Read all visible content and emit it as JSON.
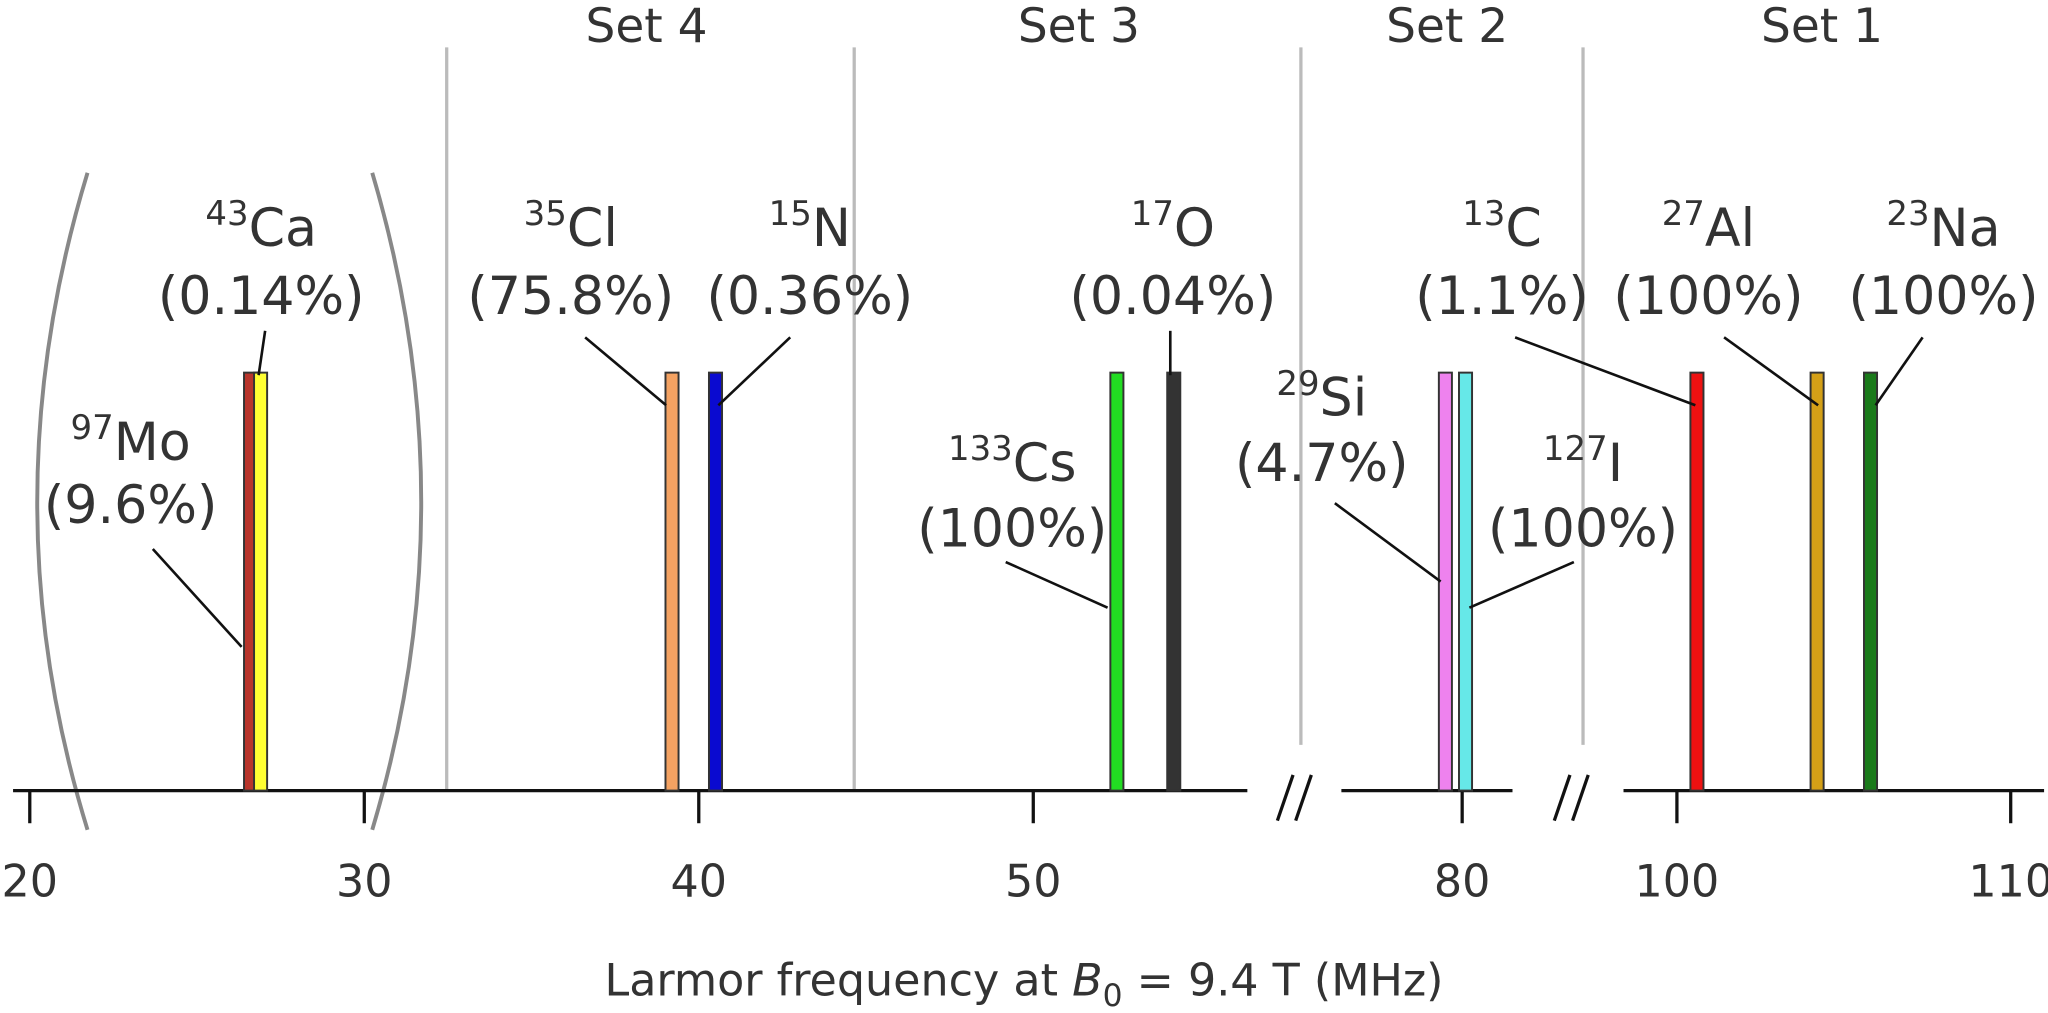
{
  "chart_data": {
    "type": "stick",
    "sets": [
      "Set 4",
      "Set 3",
      "Set 2",
      "Set 1"
    ],
    "xlabel_pre": "Larmor frequency at ",
    "xlabel_symbol": "B",
    "xlabel_subscript": "0",
    "xlabel_post": " = 9.4 T (MHz)",
    "axis_segments": [
      {
        "xlim": [
          19.5,
          56.4
        ],
        "xticks": [
          20,
          30,
          40,
          50
        ]
      },
      {
        "xlim": [
          76.4,
          81.5
        ],
        "xticks": [
          80
        ]
      },
      {
        "xlim": [
          98.4,
          111.0
        ],
        "xticks": [
          100,
          110
        ]
      }
    ],
    "nuclei": [
      {
        "mass": "97",
        "element": "Mo",
        "abundance": "(9.6%)",
        "color": "#b8352b",
        "value": 26.6
      },
      {
        "mass": "43",
        "element": "Ca",
        "abundance": "(0.14%)",
        "color": "#ffff33",
        "value": 26.9
      },
      {
        "mass": "35",
        "element": "Cl",
        "abundance": "(75.8%)",
        "color": "#f4a262",
        "value": 39.2
      },
      {
        "mass": "15",
        "element": "N",
        "abundance": "(0.36%)",
        "color": "#0a0ad0",
        "value": 40.5
      },
      {
        "mass": "133",
        "element": "Cs",
        "abundance": "(100%)",
        "color": "#22dd22",
        "value": 52.5
      },
      {
        "mass": "17",
        "element": "O",
        "abundance": "(0.04%)",
        "color": "#333333",
        "value": 54.2
      },
      {
        "mass": "29",
        "element": "Si",
        "abundance": "(4.7%)",
        "color": "#ee82ee",
        "value": 79.5
      },
      {
        "mass": "127",
        "element": "I",
        "abundance": "(100%)",
        "color": "#66e8e8",
        "value": 80.1
      },
      {
        "mass": "13",
        "element": "C",
        "abundance": "(1.1%)",
        "color": "#ee1111",
        "value": 100.6
      },
      {
        "mass": "27",
        "element": "Al",
        "abundance": "(100%)",
        "color": "#d4a017",
        "value": 104.2
      },
      {
        "mass": "23",
        "element": "Na",
        "abundance": "(100%)",
        "color": "#1a7a1a",
        "value": 105.8
      }
    ]
  }
}
